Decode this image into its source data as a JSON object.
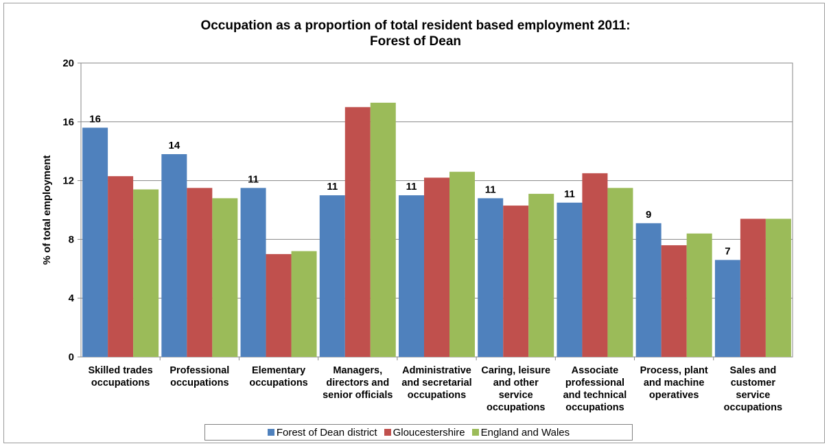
{
  "chart_data": {
    "type": "bar",
    "title": "Occupation as a proportion of total resident based employment 2011:",
    "subtitle": "Forest of Dean",
    "ylabel": "% of total employment",
    "xlabel": "",
    "ylim": [
      0,
      20
    ],
    "yticks": [
      0,
      4,
      8,
      12,
      16,
      20
    ],
    "grid": true,
    "legend_position": "bottom",
    "categories": [
      [
        "Skilled trades",
        "occupations"
      ],
      [
        "Professional",
        "occupations"
      ],
      [
        "Elementary",
        "occupations"
      ],
      [
        "Managers,",
        "directors and",
        "senior officials"
      ],
      [
        "Administrative",
        "and secretarial",
        "occupations"
      ],
      [
        "Caring, leisure",
        "and other",
        "service",
        "occupations"
      ],
      [
        "Associate",
        "professional",
        "and technical",
        "occupations"
      ],
      [
        "Process, plant",
        "and machine",
        "operatives"
      ],
      [
        "Sales and",
        "customer",
        "service",
        "occupations"
      ]
    ],
    "series": [
      {
        "name": "Forest of Dean district",
        "color": "#4F81BD",
        "values": [
          15.6,
          13.8,
          11.5,
          11.0,
          11.0,
          10.8,
          10.5,
          9.1,
          6.6
        ],
        "data_labels": [
          "16",
          "14",
          "11",
          "11",
          "11",
          "11",
          "11",
          "9",
          "7"
        ]
      },
      {
        "name": "Gloucestershire",
        "color": "#C0504D",
        "values": [
          12.3,
          11.5,
          7.0,
          17.0,
          12.2,
          10.3,
          12.5,
          7.6,
          9.4
        ]
      },
      {
        "name": "England and Wales",
        "color": "#9BBB59",
        "values": [
          11.4,
          10.8,
          7.2,
          17.3,
          12.6,
          11.1,
          11.5,
          8.4,
          9.4
        ]
      }
    ]
  }
}
